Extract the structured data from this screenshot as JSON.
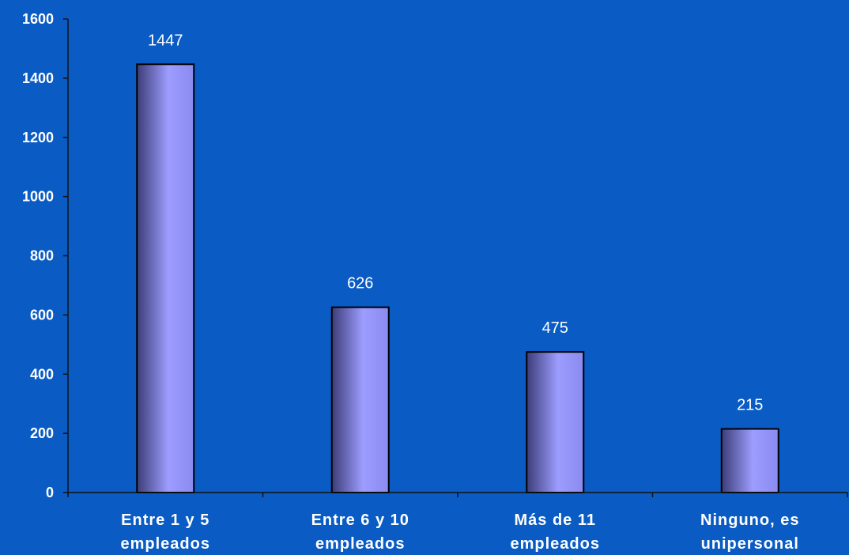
{
  "chart_data": {
    "type": "bar",
    "title": "",
    "xlabel": "",
    "ylabel": "",
    "categories": [
      [
        "Entre 1 y 5",
        "empleados"
      ],
      [
        "Entre 6 y 10",
        "empleados"
      ],
      [
        "Más de 11",
        "empleados"
      ],
      [
        "Ninguno, es",
        "unipersonal"
      ]
    ],
    "values": [
      1447,
      626,
      475,
      215
    ],
    "data_labels": [
      "1447",
      "626",
      "475",
      "215"
    ],
    "ylim": [
      0,
      1600
    ],
    "yticks": [
      0,
      200,
      400,
      600,
      800,
      1000,
      1200,
      1400,
      1600
    ],
    "grid": false,
    "legend": "none"
  },
  "colors": {
    "background": "#0A5CC4",
    "bar_light": "#9D9DFF",
    "bar_dark": "#3C3C78",
    "axis": "#111111",
    "text": "#FFFFFF"
  }
}
